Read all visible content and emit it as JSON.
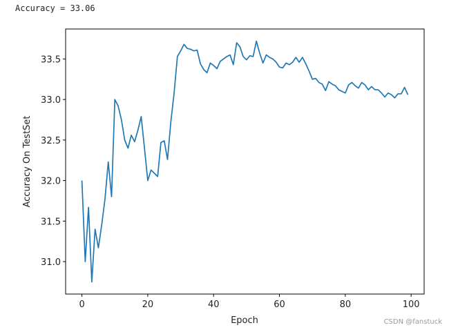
{
  "output_text": "Accuracy = 33.06",
  "watermark": "CSDN @fanstuck",
  "chart_data": {
    "type": "line",
    "xlabel": "Epoch",
    "ylabel": "Accuracy On TestSet",
    "x": [
      0,
      1,
      2,
      3,
      4,
      5,
      6,
      7,
      8,
      9,
      10,
      11,
      12,
      13,
      14,
      15,
      16,
      17,
      18,
      19,
      20,
      21,
      22,
      23,
      24,
      25,
      26,
      27,
      28,
      29,
      30,
      31,
      32,
      33,
      34,
      35,
      36,
      37,
      38,
      39,
      40,
      41,
      42,
      43,
      44,
      45,
      46,
      47,
      48,
      49,
      50,
      51,
      52,
      53,
      54,
      55,
      56,
      57,
      58,
      59,
      60,
      61,
      62,
      63,
      64,
      65,
      66,
      67,
      68,
      69,
      70,
      71,
      72,
      73,
      74,
      75,
      76,
      77,
      78,
      79,
      80,
      81,
      82,
      83,
      84,
      85,
      86,
      87,
      88,
      89,
      90,
      91,
      92,
      93,
      94,
      95,
      96,
      97,
      98,
      99
    ],
    "series": [
      {
        "color": "#1f77b4",
        "values": [
          32.0,
          31.0,
          31.67,
          30.75,
          31.4,
          31.17,
          31.45,
          31.77,
          32.23,
          31.8,
          33.0,
          32.92,
          32.75,
          32.5,
          32.4,
          32.56,
          32.48,
          32.62,
          32.79,
          32.4,
          32.0,
          32.13,
          32.09,
          32.05,
          32.47,
          32.49,
          32.26,
          32.72,
          33.08,
          33.53,
          33.6,
          33.68,
          33.63,
          33.62,
          33.6,
          33.61,
          33.44,
          33.37,
          33.33,
          33.45,
          33.42,
          33.38,
          33.47,
          33.5,
          33.53,
          33.55,
          33.43,
          33.7,
          33.65,
          33.53,
          33.49,
          33.54,
          33.53,
          33.72,
          33.57,
          33.45,
          33.55,
          33.52,
          33.5,
          33.46,
          33.4,
          33.39,
          33.45,
          33.43,
          33.46,
          33.52,
          33.46,
          33.52,
          33.44,
          33.35,
          33.25,
          33.26,
          33.21,
          33.19,
          33.11,
          33.22,
          33.19,
          33.17,
          33.12,
          33.1,
          33.08,
          33.18,
          33.21,
          33.17,
          33.14,
          33.21,
          33.18,
          33.12,
          33.16,
          33.12,
          33.12,
          33.08,
          33.03,
          33.08,
          33.06,
          33.02,
          33.07,
          33.07,
          33.15,
          33.06
        ]
      }
    ],
    "xlim": [
      -4.95,
      103.95
    ],
    "ylim": [
      30.6,
      33.87
    ],
    "xticks": [
      0,
      20,
      40,
      60,
      80,
      100
    ],
    "yticks": [
      {
        "value": 31,
        "label": "31.0"
      },
      31.5,
      {
        "value": 32,
        "label": "32.0"
      },
      32.5,
      {
        "value": 33,
        "label": "33.0"
      },
      33.5
    ],
    "grid": false
  }
}
